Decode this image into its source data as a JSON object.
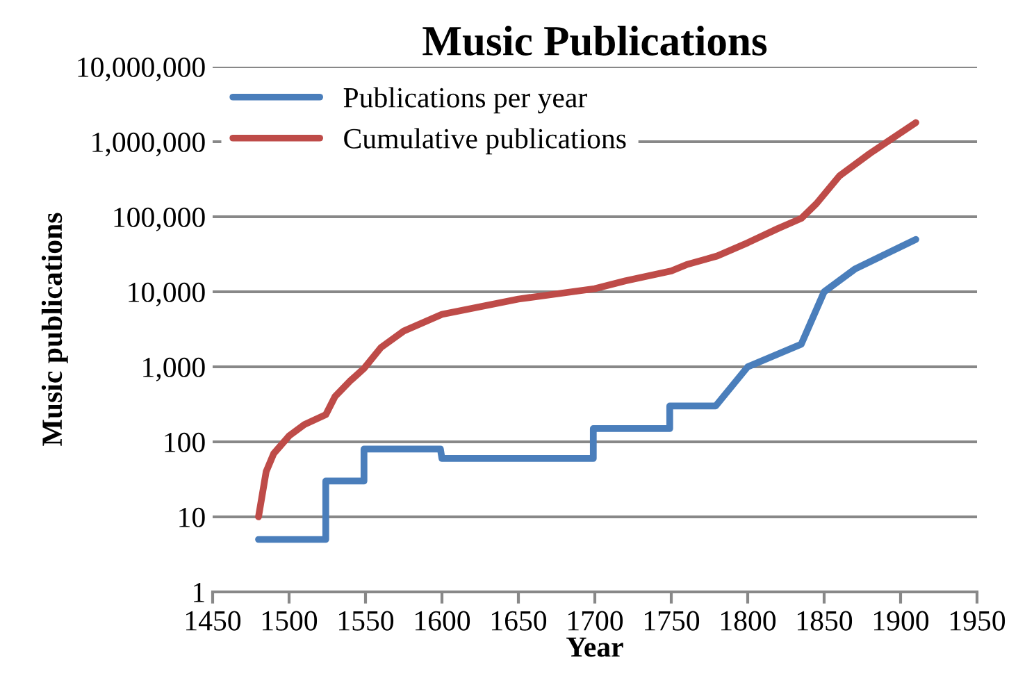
{
  "chart_data": {
    "type": "line",
    "title": "Music Publications",
    "xlabel": "Year",
    "ylabel": "Music publications",
    "log": "y",
    "grid": "y",
    "legend": "top left",
    "marker": "none",
    "line_style": "solid",
    "xlim": [
      1450,
      1950
    ],
    "xticks": [
      1450,
      1500,
      1550,
      1600,
      1650,
      1700,
      1750,
      1800,
      1850,
      1900,
      1950
    ],
    "ylim": [
      1,
      10000000
    ],
    "yticks": [
      {
        "value": 1,
        "label": "1"
      },
      {
        "value": 10,
        "label": "10"
      },
      {
        "value": 100,
        "label": "100"
      },
      {
        "value": 1000,
        "label": "1,000"
      },
      {
        "value": 10000,
        "label": "10,000"
      },
      {
        "value": 100000,
        "label": "100,000"
      },
      {
        "value": 1000000,
        "label": "1,000,000"
      },
      {
        "value": 10000000,
        "label": "10,000,000"
      }
    ],
    "series": [
      {
        "name": "Publications per year",
        "color": "#4a7ebb",
        "x": [
          1480,
          1524,
          1524,
          1549,
          1549,
          1599,
          1600,
          1699,
          1699,
          1749,
          1749,
          1779,
          1800,
          1835,
          1850,
          1870,
          1910
        ],
        "values": [
          5,
          5,
          30,
          30,
          80,
          80,
          60,
          60,
          150,
          150,
          300,
          300,
          1000,
          2000,
          10000,
          20000,
          50000
        ]
      },
      {
        "name": "Cumulative publications",
        "color": "#be4b48",
        "x": [
          1480,
          1485,
          1490,
          1500,
          1510,
          1524,
          1530,
          1540,
          1549,
          1560,
          1575,
          1600,
          1650,
          1700,
          1720,
          1750,
          1760,
          1780,
          1800,
          1820,
          1835,
          1845,
          1860,
          1880,
          1910
        ],
        "values": [
          10,
          40,
          70,
          120,
          170,
          230,
          400,
          650,
          950,
          1800,
          3000,
          5000,
          8000,
          11000,
          14000,
          19000,
          23000,
          30000,
          45000,
          70000,
          95000,
          150000,
          350000,
          700000,
          1800000
        ]
      }
    ]
  }
}
